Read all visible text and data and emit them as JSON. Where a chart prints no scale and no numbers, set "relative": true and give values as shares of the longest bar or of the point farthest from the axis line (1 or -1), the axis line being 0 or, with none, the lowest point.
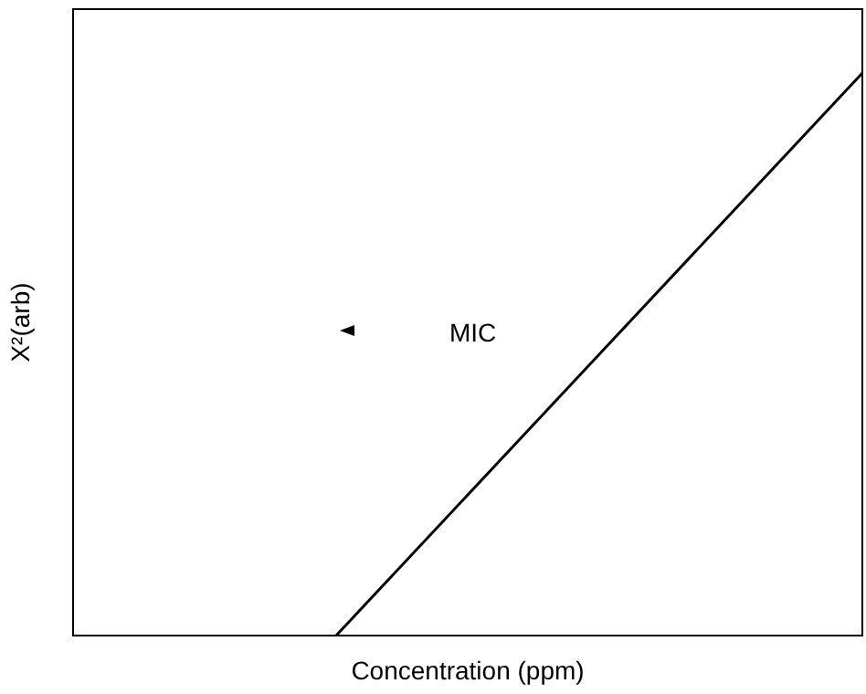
{
  "chart_data": {
    "type": "line",
    "relative": true,
    "xlabel": "Concentration (ppm)",
    "ylabel": "X²(arb)",
    "annotations": [
      "MIC"
    ],
    "categories": [
      null,
      null,
      null,
      null
    ],
    "series": [
      {
        "color": "#000000",
        "values": [
          null,
          0,
          0.5,
          1
        ]
      }
    ],
    "grid": false,
    "marker": "none",
    "line_style": "solid"
  }
}
